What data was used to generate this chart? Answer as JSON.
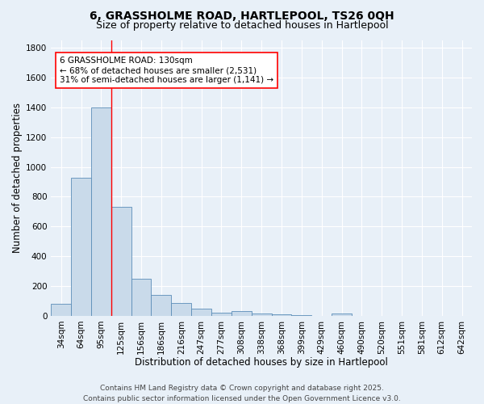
{
  "title_line1": "6, GRASSHOLME ROAD, HARTLEPOOL, TS26 0QH",
  "title_line2": "Size of property relative to detached houses in Hartlepool",
  "xlabel": "Distribution of detached houses by size in Hartlepool",
  "ylabel": "Number of detached properties",
  "categories": [
    "34sqm",
    "64sqm",
    "95sqm",
    "125sqm",
    "156sqm",
    "186sqm",
    "216sqm",
    "247sqm",
    "277sqm",
    "308sqm",
    "338sqm",
    "368sqm",
    "399sqm",
    "429sqm",
    "460sqm",
    "490sqm",
    "520sqm",
    "551sqm",
    "581sqm",
    "612sqm",
    "642sqm"
  ],
  "values": [
    80,
    930,
    1400,
    730,
    250,
    140,
    85,
    50,
    20,
    30,
    15,
    10,
    5,
    0,
    15,
    0,
    0,
    0,
    0,
    0,
    0
  ],
  "bar_color": "#c9daea",
  "bar_edge_color": "#5b8db8",
  "red_line_x": 3,
  "annotation_text": "6 GRASSHOLME ROAD: 130sqm\n← 68% of detached houses are smaller (2,531)\n31% of semi-detached houses are larger (1,141) →",
  "annotation_box_color": "white",
  "annotation_box_edge_color": "red",
  "ylim": [
    0,
    1850
  ],
  "yticks": [
    0,
    200,
    400,
    600,
    800,
    1000,
    1200,
    1400,
    1600,
    1800
  ],
  "footer_line1": "Contains HM Land Registry data © Crown copyright and database right 2025.",
  "footer_line2": "Contains public sector information licensed under the Open Government Licence v3.0.",
  "bg_color": "#e8f0f8",
  "grid_color": "#ffffff",
  "title_fontsize": 10,
  "subtitle_fontsize": 9,
  "axis_label_fontsize": 8.5,
  "tick_fontsize": 7.5,
  "annotation_fontsize": 7.5,
  "footer_fontsize": 6.5
}
